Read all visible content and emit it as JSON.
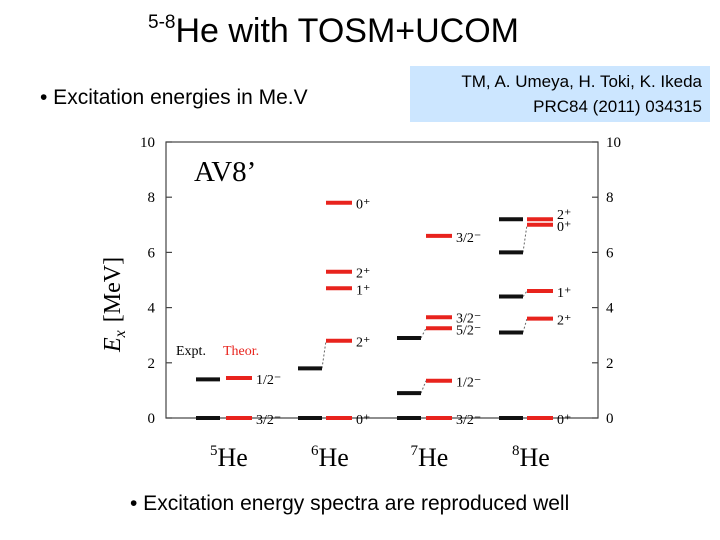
{
  "title": {
    "superscript": "5-8",
    "main": "He  with TOSM+UCOM"
  },
  "bullets": {
    "top": "• Excitation energies in Me.V",
    "bottom": "• Excitation energy spectra are reproduced well"
  },
  "reference": {
    "line1": "TM, A. Umeya, H. Toki, K. Ikeda",
    "line2": "PRC84 (2011) 034315"
  },
  "chart_data": {
    "type": "level-scheme",
    "title": "AV8’",
    "ylabel_italic": "E",
    "ylabel_sub": "x",
    "ylabel_rest": "[MeV]",
    "ylim": [
      0,
      10
    ],
    "yticks": [
      0,
      2,
      4,
      6,
      8,
      10
    ],
    "legend": {
      "expt": "Expt.",
      "theor": "Theor."
    },
    "colors": {
      "expt": "#111111",
      "theor": "#e8231d",
      "axis": "#444444"
    },
    "isotopes": [
      {
        "mass": "5",
        "element": "He",
        "expt": [
          0,
          1.4
        ],
        "theor": [
          {
            "e": 0,
            "label": "3/2⁻"
          },
          {
            "e": 1.45,
            "label": "1/2⁻"
          }
        ]
      },
      {
        "mass": "6",
        "element": "He",
        "expt": [
          0,
          1.8
        ],
        "theor": [
          {
            "e": 0,
            "label": "0⁺"
          },
          {
            "e": 2.8,
            "label": "2⁺"
          },
          {
            "e": 4.7,
            "label": "1⁺"
          },
          {
            "e": 5.3,
            "label": "2⁺"
          },
          {
            "e": 7.8,
            "label": "0⁺"
          }
        ]
      },
      {
        "mass": "7",
        "element": "He",
        "expt": [
          0,
          0.9,
          2.9
        ],
        "theor": [
          {
            "e": 0,
            "label": "3/2⁻"
          },
          {
            "e": 1.35,
            "label": "1/2⁻"
          },
          {
            "e": 3.25,
            "label": "5/2⁻"
          },
          {
            "e": 3.65,
            "label": "3/2⁻"
          },
          {
            "e": 6.6,
            "label": "3/2⁻"
          }
        ]
      },
      {
        "mass": "8",
        "element": "He",
        "expt": [
          0,
          3.1,
          4.4,
          6.0,
          7.2
        ],
        "theor": [
          {
            "e": 0,
            "label": "0⁺"
          },
          {
            "e": 3.6,
            "label": "2⁺"
          },
          {
            "e": 4.6,
            "label": "1⁺"
          },
          {
            "e": 7.0,
            "label": "0⁺"
          },
          {
            "e": 7.2,
            "label": "2⁺"
          }
        ]
      }
    ]
  }
}
